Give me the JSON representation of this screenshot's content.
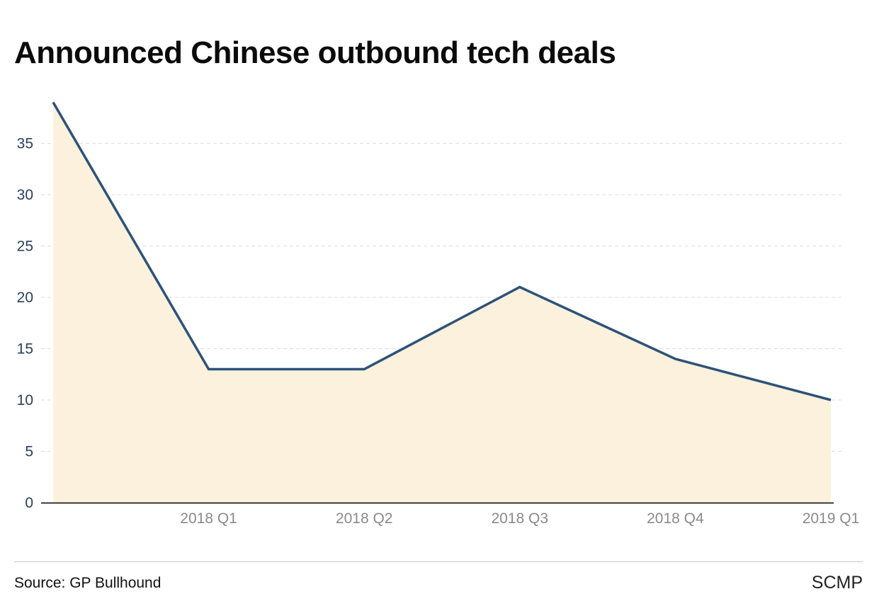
{
  "chart_data": {
    "type": "area",
    "title": "Announced Chinese outbound tech deals",
    "xlabel": "",
    "ylabel": "",
    "x_index": [
      0,
      1,
      2,
      3,
      4,
      5
    ],
    "values": [
      39,
      13,
      13,
      21,
      14,
      10
    ],
    "tick_labels": [
      {
        "index": 1,
        "label": "2018 Q1"
      },
      {
        "index": 2,
        "label": "2018 Q2"
      },
      {
        "index": 3,
        "label": "2018 Q3"
      },
      {
        "index": 4,
        "label": "2018 Q4"
      },
      {
        "index": 5,
        "label": "2019 Q1"
      }
    ],
    "yticks": [
      0,
      5,
      10,
      15,
      20,
      25,
      30,
      35
    ],
    "ylim": [
      0,
      39
    ],
    "grid": true,
    "colors": {
      "line": "#2d5278",
      "fill": "#fcf1dc",
      "grid": "#dddddd",
      "axis": "#000000"
    }
  },
  "footer": {
    "source": "Source: GP Bullhound",
    "brand": "SCMP"
  }
}
